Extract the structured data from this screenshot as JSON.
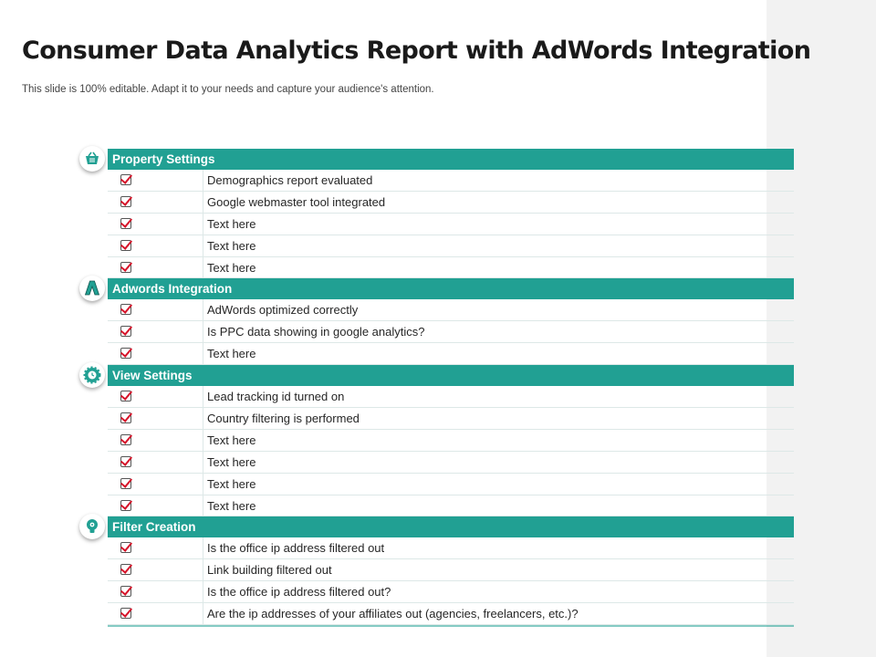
{
  "title": "Consumer Data Analytics Report with AdWords Integration",
  "subtitle": "This slide is 100% editable. Adapt it to your needs and capture your audience's attention.",
  "colors": {
    "accent": "#21a093",
    "check": "#d6142a"
  },
  "sections": [
    {
      "title": "Property Settings",
      "icon": "shopping-basket-icon",
      "items": [
        "Demographics report evaluated",
        "Google webmaster tool integrated",
        "Text here",
        "Text here",
        "Text here"
      ]
    },
    {
      "title": "Adwords Integration",
      "icon": "adwords-logo-icon",
      "items": [
        "AdWords optimized correctly",
        "Is PPC data showing in google analytics?",
        "Text here"
      ]
    },
    {
      "title": "View Settings",
      "icon": "gear-clock-icon",
      "items": [
        "Lead tracking id turned on",
        "Country filtering is performed",
        "Text here",
        "Text here",
        "Text here",
        "Text here"
      ]
    },
    {
      "title": "Filter Creation",
      "icon": "lightbulb-gear-icon",
      "items": [
        "Is the office ip address filtered out",
        "Link building filtered out",
        "Is the office ip address filtered out?",
        "Are the ip addresses of your affiliates out (agencies, freelancers, etc.)?"
      ]
    }
  ]
}
